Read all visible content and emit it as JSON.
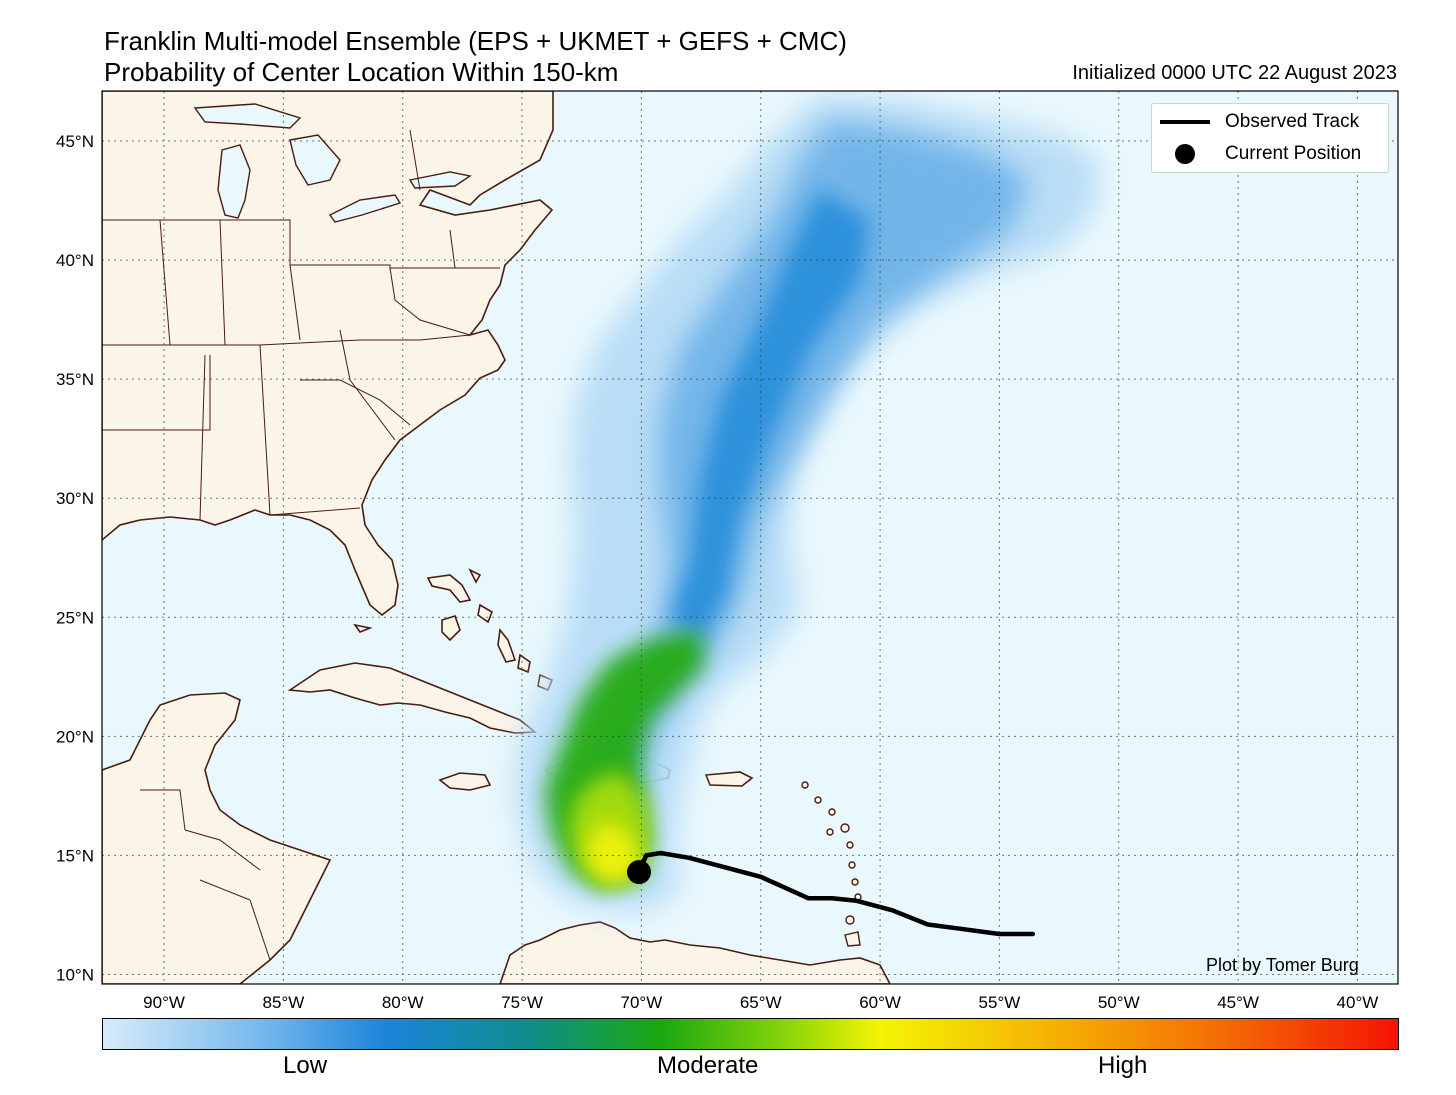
{
  "title": {
    "line1": "Franklin Multi-model Ensemble (EPS + UKMET + GEFS + CMC)",
    "line2": "Probability of Center Location Within 150-km",
    "initialized": "Initialized 0000 UTC 22 August 2023"
  },
  "axes": {
    "lat_ticks": [
      "45°N",
      "40°N",
      "35°N",
      "30°N",
      "25°N",
      "20°N",
      "15°N",
      "10°N"
    ],
    "lon_ticks": [
      "90°W",
      "85°W",
      "80°W",
      "75°W",
      "70°W",
      "65°W",
      "60°W",
      "55°W",
      "50°W",
      "45°W",
      "40°W"
    ],
    "lat_range": [
      9.6,
      47.1
    ],
    "lon_range": [
      -92.6,
      -38.3
    ]
  },
  "legend": {
    "observed_track": "Observed Track",
    "current_position": "Current Position"
  },
  "credit": "Plot by Tomer Burg",
  "colorbar": {
    "labels": [
      "Low",
      "Moderate",
      "High"
    ],
    "colors": [
      "#d7ecfb",
      "#1b83d9",
      "#1aa810",
      "#f4f404",
      "#f47a04",
      "#f41404"
    ]
  },
  "track": {
    "observed": [
      [
        -53.6,
        11.7
      ],
      [
        -55,
        11.7
      ],
      [
        -56.5,
        11.9
      ],
      [
        -58,
        12.1
      ],
      [
        -59.5,
        12.7
      ],
      [
        -61,
        13.1
      ],
      [
        -62,
        13.2
      ],
      [
        -63,
        13.2
      ],
      [
        -65,
        14.1
      ],
      [
        -66.5,
        14.5
      ],
      [
        -68,
        14.9
      ],
      [
        -69.2,
        15.1
      ],
      [
        -69.8,
        15.0
      ],
      [
        -70.1,
        14.3
      ]
    ],
    "current_position": [
      -70.1,
      14.3
    ]
  },
  "colors": {
    "ocean": "#e9f8fd",
    "land": "#fbf4e8",
    "coast": "#4a1c10"
  }
}
